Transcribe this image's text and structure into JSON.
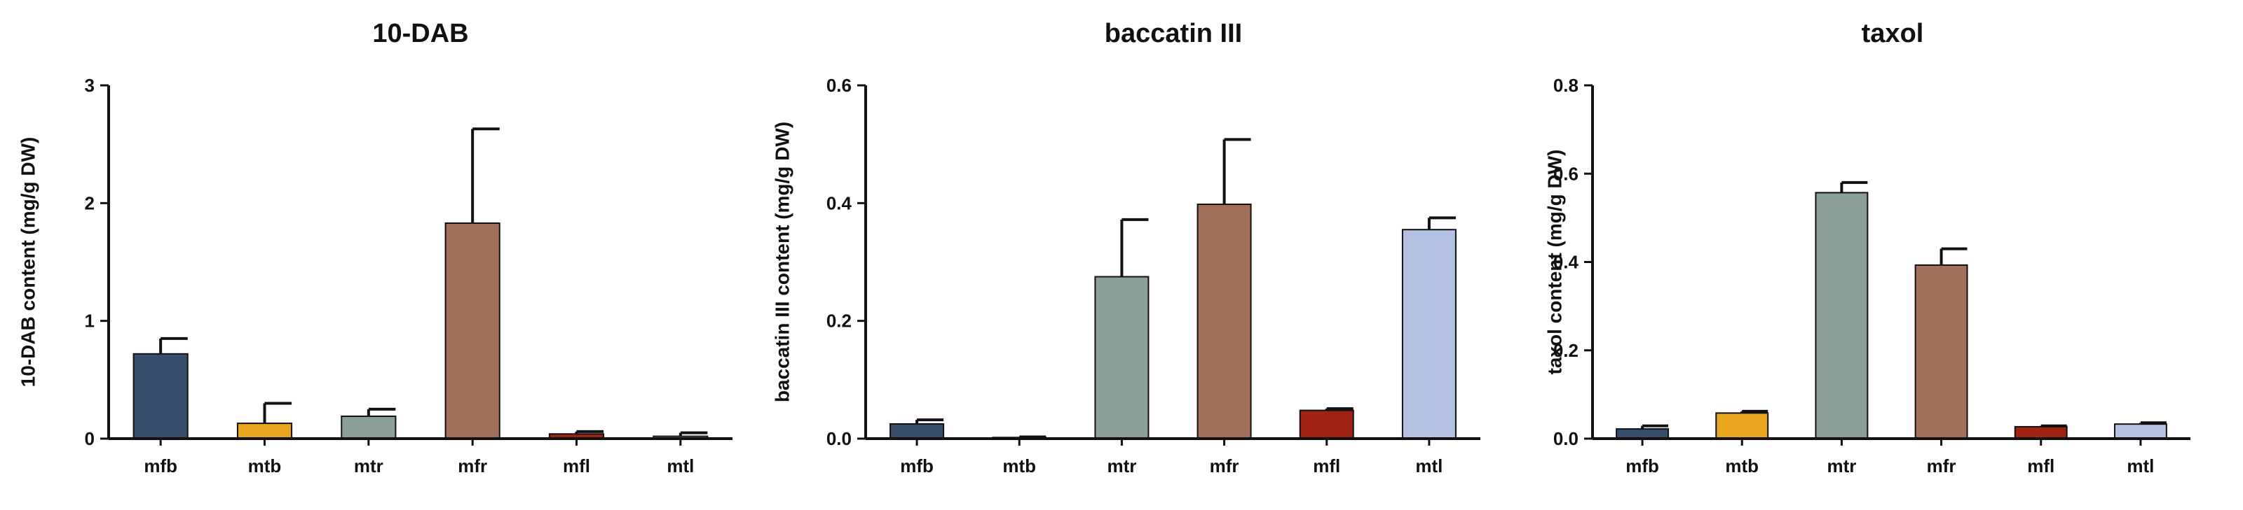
{
  "chart_data": [
    {
      "type": "bar",
      "title": "10-DAB",
      "ylabel": "10-DAB content (mg/g DW)",
      "xlabel": "",
      "categories": [
        "mfb",
        "mtb",
        "mtr",
        "mfr",
        "mfl",
        "mtl"
      ],
      "values": [
        0.72,
        0.13,
        0.19,
        1.83,
        0.04,
        0.02
      ],
      "errors": [
        0.13,
        0.17,
        0.06,
        0.8,
        0.02,
        0.03
      ],
      "ylim": [
        0,
        3
      ],
      "yticks": [
        "0",
        "1",
        "2",
        "3"
      ],
      "colors": [
        "#364e6b",
        "#e8a61f",
        "#8a9e9a",
        "#a0705a",
        "#a02213",
        "#b4c1e4"
      ],
      "grid": false
    },
    {
      "type": "bar",
      "title": "baccatin III",
      "ylabel": "baccatin III content (mg/g DW)",
      "xlabel": "",
      "categories": [
        "mfb",
        "mtb",
        "mtr",
        "mfr",
        "mfl",
        "mtl"
      ],
      "values": [
        0.025,
        0.002,
        0.275,
        0.398,
        0.048,
        0.355
      ],
      "errors": [
        0.007,
        0.001,
        0.097,
        0.11,
        0.003,
        0.02
      ],
      "ylim": [
        0,
        0.6
      ],
      "yticks": [
        "0.0",
        "0.2",
        "0.4",
        "0.6"
      ],
      "colors": [
        "#364e6b",
        "#e8a61f",
        "#8a9e9a",
        "#a0705a",
        "#a02213",
        "#b4c1e4"
      ],
      "grid": false
    },
    {
      "type": "bar",
      "title": "taxol",
      "ylabel": "taxol content (mg/g DW)",
      "xlabel": "",
      "categories": [
        "mfb",
        "mtb",
        "mtr",
        "mfr",
        "mfl",
        "mtl"
      ],
      "values": [
        0.022,
        0.058,
        0.557,
        0.393,
        0.027,
        0.033
      ],
      "errors": [
        0.007,
        0.004,
        0.023,
        0.037,
        0.002,
        0.003
      ],
      "ylim": [
        0,
        0.8
      ],
      "yticks": [
        "0.0",
        "0.2",
        "0.4",
        "0.6",
        "0.8"
      ],
      "colors": [
        "#364e6b",
        "#e8a61f",
        "#8a9e9a",
        "#a0705a",
        "#a02213",
        "#b4c1e4"
      ],
      "grid": false
    }
  ]
}
